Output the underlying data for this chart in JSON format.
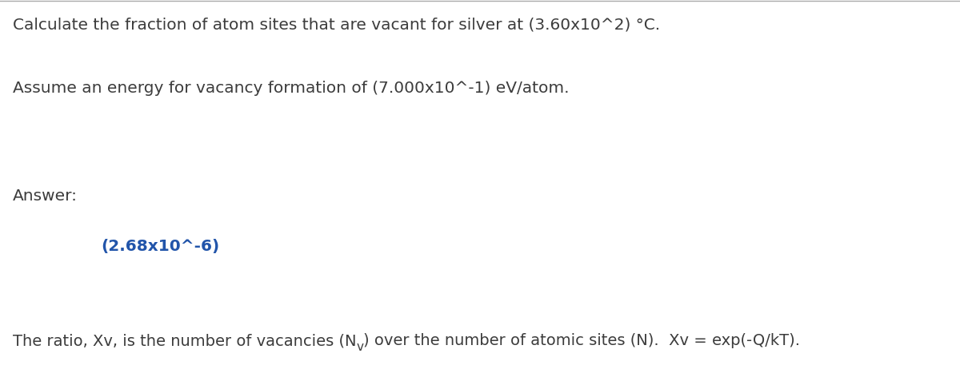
{
  "background_color": "#ffffff",
  "top_border_color": "#aaaaaa",
  "line1": "Calculate the fraction of atom sites that are vacant for silver at (3.60x10^2) °C.",
  "line2": "Assume an energy for vacancy formation of (7.000x10^-1) eV/atom.",
  "line3_label": "Answer:",
  "line3_answer": "(2.68x10^-6)",
  "line4_pre": "The ratio, Xv, is the number of vacancies (N",
  "line4_sub": "v",
  "line4_post": ") over the number of atomic sites (Ν).  Xv = exp(-Q/kT).",
  "text_color": "#3c3c3c",
  "answer_color": "#2255aa",
  "font_size_main": 14.5,
  "font_size_answer": 14.5,
  "font_size_bottom": 14.0,
  "font_size_sub": 11.0,
  "fig_width": 12.0,
  "fig_height": 4.82,
  "dpi": 100
}
